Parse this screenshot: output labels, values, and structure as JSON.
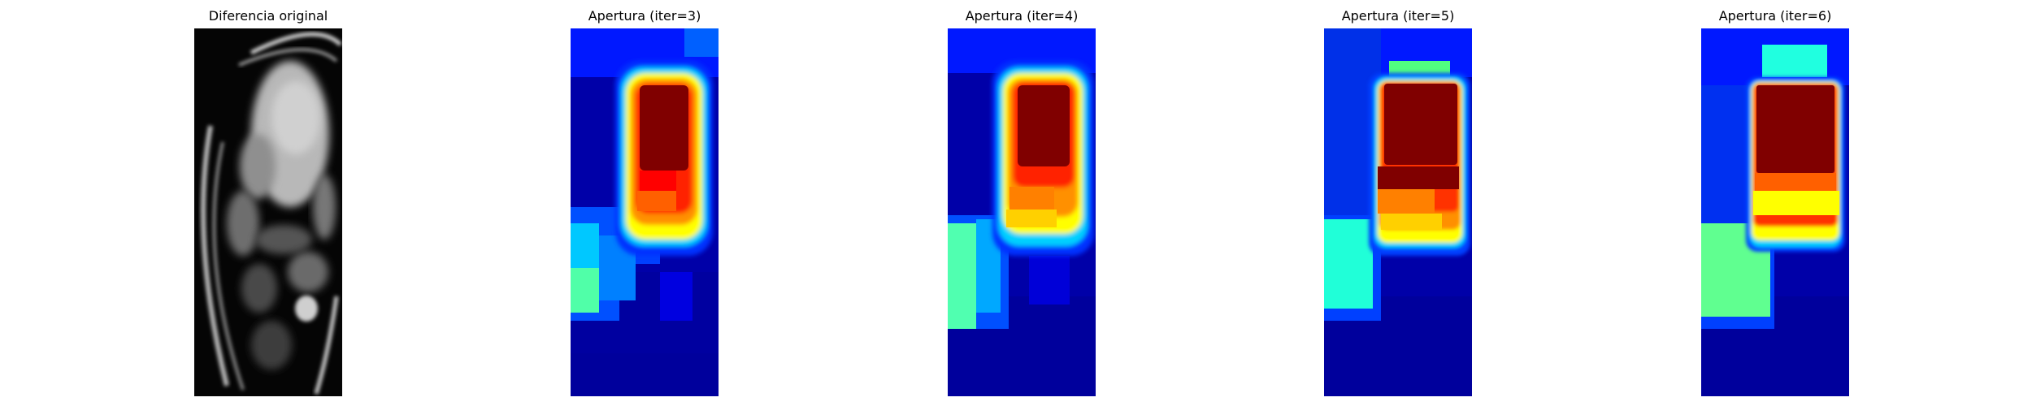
{
  "panels": [
    {
      "title": "Diferencia original",
      "kind": "grayscale"
    },
    {
      "title": "Apertura (iter=3)",
      "kind": "jet",
      "iter": 3
    },
    {
      "title": "Apertura (iter=4)",
      "kind": "jet",
      "iter": 4
    },
    {
      "title": "Apertura (iter=5)",
      "kind": "jet",
      "iter": 5
    },
    {
      "title": "Apertura (iter=6)",
      "kind": "jet",
      "iter": 6
    }
  ],
  "colormap": "jet",
  "colors": {
    "background": "#ffffff",
    "jet_dark_blue": "#00008f",
    "jet_blue": "#0000ff",
    "jet_cyan": "#00ffff",
    "jet_yellow": "#ffff00",
    "jet_orange": "#ff8000",
    "jet_red": "#ff0000",
    "jet_dark_red": "#800000"
  }
}
